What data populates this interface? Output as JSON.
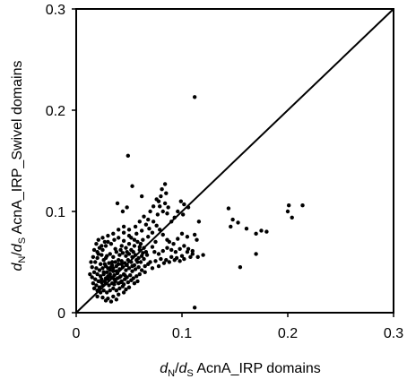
{
  "chart_data": {
    "type": "scatter",
    "xlim": [
      0,
      0.3
    ],
    "ylim": [
      0,
      0.3
    ],
    "x_ticks": [
      0,
      0.1,
      0.2,
      0.3
    ],
    "y_ticks": [
      0,
      0.1,
      0.2,
      0.3
    ],
    "x_tick_labels": [
      "0",
      "0.1",
      "0.2",
      "0.3"
    ],
    "y_tick_labels": [
      "0",
      "0.1",
      "0.2",
      "0.3"
    ],
    "grid": false,
    "legend": "none",
    "xlabel": {
      "var1": "d",
      "sub1": "N",
      "slash": "/",
      "var2": "d",
      "sub2": "S",
      "rest": " AcnA_IRP domains"
    },
    "ylabel": {
      "var1": "d",
      "sub1": "N",
      "slash": "/",
      "var2": "d",
      "sub2": "S",
      "rest": " AcnA_IRP_Swivel domains"
    },
    "reference_line": {
      "x": [
        0,
        0.3
      ],
      "y": [
        0,
        0.3
      ]
    },
    "marker_color": "#000000",
    "points": [
      [
        0.112,
        0.213
      ],
      [
        0.049,
        0.155
      ],
      [
        0.053,
        0.125
      ],
      [
        0.062,
        0.115
      ],
      [
        0.084,
        0.127
      ],
      [
        0.081,
        0.122
      ],
      [
        0.085,
        0.118
      ],
      [
        0.078,
        0.11
      ],
      [
        0.079,
        0.105
      ],
      [
        0.082,
        0.1
      ],
      [
        0.086,
        0.098
      ],
      [
        0.077,
        0.097
      ],
      [
        0.084,
        0.108
      ],
      [
        0.087,
        0.104
      ],
      [
        0.099,
        0.11
      ],
      [
        0.102,
        0.107
      ],
      [
        0.106,
        0.104
      ],
      [
        0.096,
        0.1
      ],
      [
        0.101,
        0.097
      ],
      [
        0.093,
        0.094
      ],
      [
        0.09,
        0.09
      ],
      [
        0.039,
        0.108
      ],
      [
        0.044,
        0.1
      ],
      [
        0.048,
        0.104
      ],
      [
        0.066,
        0.087
      ],
      [
        0.069,
        0.083
      ],
      [
        0.073,
        0.09
      ],
      [
        0.076,
        0.086
      ],
      [
        0.072,
        0.079
      ],
      [
        0.068,
        0.075
      ],
      [
        0.079,
        0.082
      ],
      [
        0.082,
        0.077
      ],
      [
        0.086,
        0.072
      ],
      [
        0.075,
        0.07
      ],
      [
        0.063,
        0.072
      ],
      [
        0.144,
        0.103
      ],
      [
        0.148,
        0.092
      ],
      [
        0.153,
        0.089
      ],
      [
        0.146,
        0.085
      ],
      [
        0.161,
        0.083
      ],
      [
        0.17,
        0.078
      ],
      [
        0.175,
        0.081
      ],
      [
        0.18,
        0.08
      ],
      [
        0.155,
        0.045
      ],
      [
        0.17,
        0.058
      ],
      [
        0.2,
        0.1
      ],
      [
        0.201,
        0.106
      ],
      [
        0.204,
        0.094
      ],
      [
        0.214,
        0.106
      ],
      [
        0.116,
        0.09
      ],
      [
        0.112,
        0.077
      ],
      [
        0.114,
        0.072
      ],
      [
        0.105,
        0.075
      ],
      [
        0.112,
        0.005
      ],
      [
        0.115,
        0.055
      ],
      [
        0.12,
        0.057
      ],
      [
        0.11,
        0.058
      ],
      [
        0.105,
        0.06
      ],
      [
        0.1,
        0.056
      ],
      [
        0.095,
        0.054
      ],
      [
        0.09,
        0.055
      ],
      [
        0.085,
        0.052
      ],
      [
        0.08,
        0.053
      ],
      [
        0.075,
        0.051
      ],
      [
        0.07,
        0.05
      ],
      [
        0.068,
        0.048
      ],
      [
        0.065,
        0.046
      ],
      [
        0.072,
        0.044
      ],
      [
        0.078,
        0.046
      ],
      [
        0.083,
        0.049
      ],
      [
        0.088,
        0.05
      ],
      [
        0.093,
        0.052
      ],
      [
        0.098,
        0.051
      ],
      [
        0.102,
        0.053
      ],
      [
        0.108,
        0.055
      ],
      [
        0.06,
        0.062
      ],
      [
        0.055,
        0.066
      ],
      [
        0.058,
        0.07
      ],
      [
        0.061,
        0.068
      ],
      [
        0.052,
        0.074
      ],
      [
        0.057,
        0.078
      ],
      [
        0.062,
        0.081
      ],
      [
        0.064,
        0.064
      ],
      [
        0.066,
        0.06
      ],
      [
        0.02,
        0.06
      ],
      [
        0.022,
        0.064
      ],
      [
        0.025,
        0.062
      ],
      [
        0.019,
        0.068
      ],
      [
        0.028,
        0.066
      ],
      [
        0.03,
        0.07
      ],
      [
        0.033,
        0.068
      ],
      [
        0.036,
        0.072
      ],
      [
        0.04,
        0.074
      ],
      [
        0.045,
        0.071
      ],
      [
        0.043,
        0.066
      ],
      [
        0.047,
        0.064
      ],
      [
        0.05,
        0.068
      ],
      [
        0.052,
        0.062
      ],
      [
        0.018,
        0.05
      ],
      [
        0.02,
        0.054
      ],
      [
        0.023,
        0.048
      ],
      [
        0.026,
        0.052
      ],
      [
        0.029,
        0.056
      ],
      [
        0.032,
        0.058
      ],
      [
        0.035,
        0.055
      ],
      [
        0.038,
        0.06
      ],
      [
        0.041,
        0.057
      ],
      [
        0.044,
        0.059
      ],
      [
        0.047,
        0.056
      ],
      [
        0.05,
        0.058
      ],
      [
        0.053,
        0.055
      ],
      [
        0.056,
        0.057
      ],
      [
        0.059,
        0.054
      ],
      [
        0.062,
        0.056
      ],
      [
        0.058,
        0.05
      ],
      [
        0.055,
        0.047
      ],
      [
        0.052,
        0.05
      ],
      [
        0.049,
        0.052
      ],
      [
        0.046,
        0.049
      ],
      [
        0.043,
        0.051
      ],
      [
        0.04,
        0.048
      ],
      [
        0.037,
        0.05
      ],
      [
        0.034,
        0.047
      ],
      [
        0.031,
        0.049
      ],
      [
        0.028,
        0.046
      ],
      [
        0.025,
        0.044
      ],
      [
        0.022,
        0.042
      ],
      [
        0.019,
        0.044
      ],
      [
        0.017,
        0.04
      ],
      [
        0.02,
        0.038
      ],
      [
        0.023,
        0.036
      ],
      [
        0.026,
        0.038
      ],
      [
        0.029,
        0.04
      ],
      [
        0.032,
        0.042
      ],
      [
        0.035,
        0.044
      ],
      [
        0.038,
        0.041
      ],
      [
        0.041,
        0.043
      ],
      [
        0.044,
        0.045
      ],
      [
        0.047,
        0.042
      ],
      [
        0.05,
        0.044
      ],
      [
        0.053,
        0.041
      ],
      [
        0.056,
        0.043
      ],
      [
        0.059,
        0.045
      ],
      [
        0.062,
        0.042
      ],
      [
        0.065,
        0.04
      ],
      [
        0.06,
        0.038
      ],
      [
        0.057,
        0.036
      ],
      [
        0.054,
        0.034
      ],
      [
        0.051,
        0.037
      ],
      [
        0.048,
        0.035
      ],
      [
        0.045,
        0.038
      ],
      [
        0.042,
        0.036
      ],
      [
        0.039,
        0.034
      ],
      [
        0.036,
        0.037
      ],
      [
        0.033,
        0.035
      ],
      [
        0.03,
        0.033
      ],
      [
        0.027,
        0.031
      ],
      [
        0.024,
        0.033
      ],
      [
        0.021,
        0.031
      ],
      [
        0.018,
        0.033
      ],
      [
        0.016,
        0.029
      ],
      [
        0.019,
        0.027
      ],
      [
        0.022,
        0.025
      ],
      [
        0.025,
        0.027
      ],
      [
        0.028,
        0.029
      ],
      [
        0.031,
        0.027
      ],
      [
        0.034,
        0.029
      ],
      [
        0.037,
        0.031
      ],
      [
        0.04,
        0.029
      ],
      [
        0.043,
        0.031
      ],
      [
        0.046,
        0.033
      ],
      [
        0.049,
        0.03
      ],
      [
        0.052,
        0.032
      ],
      [
        0.055,
        0.029
      ],
      [
        0.058,
        0.031
      ],
      [
        0.05,
        0.025
      ],
      [
        0.047,
        0.023
      ],
      [
        0.044,
        0.026
      ],
      [
        0.041,
        0.024
      ],
      [
        0.038,
        0.022
      ],
      [
        0.035,
        0.024
      ],
      [
        0.032,
        0.022
      ],
      [
        0.029,
        0.02
      ],
      [
        0.026,
        0.022
      ],
      [
        0.023,
        0.02
      ],
      [
        0.02,
        0.022
      ],
      [
        0.017,
        0.024
      ],
      [
        0.02,
        0.016
      ],
      [
        0.025,
        0.015
      ],
      [
        0.03,
        0.014
      ],
      [
        0.035,
        0.016
      ],
      [
        0.04,
        0.018
      ],
      [
        0.045,
        0.02
      ],
      [
        0.028,
        0.012
      ],
      [
        0.033,
        0.011
      ],
      [
        0.038,
        0.013
      ],
      [
        0.042,
        0.03
      ],
      [
        0.036,
        0.028
      ],
      [
        0.03,
        0.036
      ],
      [
        0.026,
        0.04
      ],
      [
        0.033,
        0.045
      ],
      [
        0.039,
        0.039
      ],
      [
        0.045,
        0.028
      ],
      [
        0.04,
        0.052
      ],
      [
        0.034,
        0.05
      ],
      [
        0.028,
        0.054
      ],
      [
        0.024,
        0.057
      ],
      [
        0.037,
        0.063
      ],
      [
        0.042,
        0.062
      ],
      [
        0.048,
        0.06
      ],
      [
        0.054,
        0.06
      ],
      [
        0.032,
        0.038
      ],
      [
        0.028,
        0.034
      ],
      [
        0.024,
        0.03
      ],
      [
        0.036,
        0.033
      ],
      [
        0.041,
        0.035
      ],
      [
        0.046,
        0.037
      ],
      [
        0.03,
        0.044
      ],
      [
        0.035,
        0.041
      ],
      [
        0.027,
        0.048
      ],
      [
        0.038,
        0.046
      ],
      [
        0.043,
        0.048
      ],
      [
        0.048,
        0.047
      ],
      [
        0.053,
        0.046
      ],
      [
        0.057,
        0.052
      ],
      [
        0.061,
        0.05
      ],
      [
        0.064,
        0.053
      ],
      [
        0.067,
        0.057
      ],
      [
        0.063,
        0.059
      ],
      [
        0.06,
        0.065
      ],
      [
        0.055,
        0.072
      ],
      [
        0.05,
        0.076
      ],
      [
        0.045,
        0.079
      ],
      [
        0.04,
        0.082
      ],
      [
        0.035,
        0.078
      ],
      [
        0.03,
        0.076
      ],
      [
        0.025,
        0.074
      ],
      [
        0.021,
        0.072
      ],
      [
        0.015,
        0.045
      ],
      [
        0.014,
        0.05
      ],
      [
        0.016,
        0.055
      ],
      [
        0.015,
        0.035
      ],
      [
        0.013,
        0.038
      ],
      [
        0.017,
        0.062
      ],
      [
        0.021,
        0.058
      ],
      [
        0.024,
        0.066
      ],
      [
        0.027,
        0.07
      ],
      [
        0.045,
        0.085
      ],
      [
        0.05,
        0.082
      ],
      [
        0.056,
        0.085
      ],
      [
        0.06,
        0.09
      ],
      [
        0.064,
        0.095
      ],
      [
        0.07,
        0.1
      ],
      [
        0.073,
        0.105
      ],
      [
        0.076,
        0.112
      ],
      [
        0.08,
        0.115
      ],
      [
        0.068,
        0.092
      ],
      [
        0.072,
        0.065
      ],
      [
        0.074,
        0.06
      ],
      [
        0.078,
        0.058
      ],
      [
        0.082,
        0.061
      ],
      [
        0.086,
        0.064
      ],
      [
        0.09,
        0.062
      ],
      [
        0.094,
        0.06
      ],
      [
        0.098,
        0.063
      ],
      [
        0.102,
        0.066
      ],
      [
        0.106,
        0.063
      ],
      [
        0.11,
        0.061
      ],
      [
        0.088,
        0.07
      ],
      [
        0.092,
        0.068
      ],
      [
        0.096,
        0.073
      ],
      [
        0.1,
        0.078
      ]
    ]
  }
}
